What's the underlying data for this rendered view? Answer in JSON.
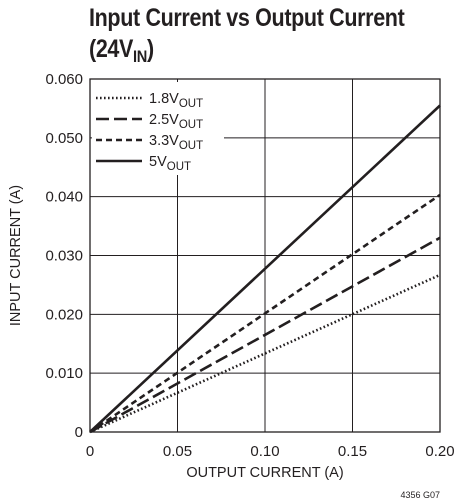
{
  "chart_data": {
    "type": "line",
    "title_main": "Input Current vs Output Current",
    "title_cond": "(24V",
    "title_cond_sub": "IN",
    "title_cond_end": ")",
    "xlabel": "OUTPUT CURRENT (A)",
    "ylabel": "INPUT CURRENT (A)",
    "xlim": [
      0,
      0.2
    ],
    "ylim": [
      0,
      0.06
    ],
    "x_ticks": [
      "0",
      "0.05",
      "0.10",
      "0.15",
      "0.20"
    ],
    "y_ticks": [
      "0",
      "0.010",
      "0.020",
      "0.030",
      "0.040",
      "0.050",
      "0.060"
    ],
    "grid": true,
    "legend_position": "top-left",
    "series": [
      {
        "name": "1.8V",
        "name_sub": "OUT",
        "style": "dotted",
        "x": [
          0,
          0.2
        ],
        "y": [
          0,
          0.0267
        ]
      },
      {
        "name": "2.5V",
        "name_sub": "OUT",
        "style": "long-dash",
        "x": [
          0,
          0.2
        ],
        "y": [
          0,
          0.033
        ]
      },
      {
        "name": "3.3V",
        "name_sub": "OUT",
        "style": "short-dash",
        "x": [
          0,
          0.2
        ],
        "y": [
          0,
          0.0403
        ]
      },
      {
        "name": "5V",
        "name_sub": "OUT",
        "style": "solid",
        "x": [
          0,
          0.2
        ],
        "y": [
          0,
          0.0555
        ]
      }
    ],
    "figure_id": "4356 G07",
    "line_color": "#231f20",
    "grid_color": "#231f20"
  }
}
